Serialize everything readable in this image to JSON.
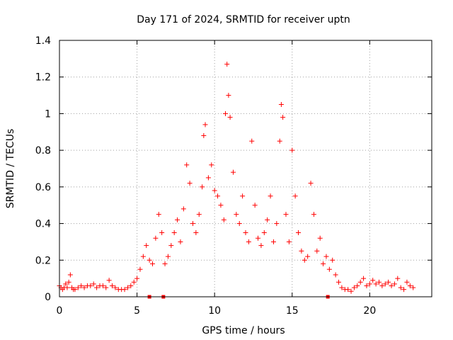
{
  "chart_data": {
    "type": "scatter",
    "title": "Day 171 of 2024, SRMTID for receiver uptn",
    "xlabel": "GPS time / hours",
    "ylabel": "SRMTID / TECUs",
    "xlim": [
      0,
      24
    ],
    "ylim": [
      0,
      1.4
    ],
    "x_ticks": [
      0,
      5,
      10,
      15,
      20
    ],
    "x_tick_labels": [
      "0",
      "5",
      "10",
      "15",
      "20"
    ],
    "y_ticks": [
      0,
      0.2,
      0.4,
      0.6,
      0.8,
      1.0,
      1.2,
      1.4
    ],
    "y_tick_labels": [
      "0",
      "0.2",
      "0.4",
      "0.6",
      "0.8",
      "1",
      "1.2",
      "1.4"
    ],
    "grid": true,
    "marker": "plus",
    "color": "#ff0000",
    "series": [
      {
        "name": "SRMTID",
        "x": [
          0.0,
          0.1,
          0.2,
          0.3,
          0.4,
          0.5,
          0.6,
          0.7,
          0.8,
          0.9,
          1.0,
          1.2,
          1.4,
          1.6,
          1.8,
          2.0,
          2.2,
          2.4,
          2.6,
          2.8,
          3.0,
          3.2,
          3.4,
          3.6,
          3.8,
          4.0,
          4.2,
          4.4,
          4.6,
          4.8,
          5.0,
          5.2,
          5.4,
          5.6,
          5.8,
          6.0,
          6.2,
          6.4,
          6.6,
          6.8,
          7.0,
          7.2,
          7.4,
          7.6,
          7.8,
          8.0,
          8.2,
          8.4,
          8.6,
          8.8,
          9.0,
          9.2,
          9.3,
          9.4,
          9.6,
          9.8,
          10.0,
          10.2,
          10.4,
          10.6,
          10.7,
          10.8,
          10.9,
          11.0,
          11.2,
          11.4,
          11.6,
          11.8,
          12.0,
          12.2,
          12.4,
          12.6,
          12.8,
          13.0,
          13.2,
          13.4,
          13.6,
          13.8,
          14.0,
          14.2,
          14.3,
          14.4,
          14.6,
          14.8,
          15.0,
          15.2,
          15.4,
          15.6,
          15.8,
          16.0,
          16.2,
          16.4,
          16.6,
          16.8,
          17.0,
          17.2,
          17.4,
          17.6,
          17.8,
          18.0,
          18.2,
          18.4,
          18.6,
          18.8,
          19.0,
          19.2,
          19.4,
          19.6,
          19.8,
          20.0,
          20.2,
          20.4,
          20.6,
          20.8,
          21.0,
          21.2,
          21.4,
          21.6,
          21.8,
          22.0,
          22.2,
          22.4,
          22.6,
          22.8
        ],
        "y": [
          0.06,
          0.05,
          0.04,
          0.05,
          0.07,
          0.05,
          0.08,
          0.12,
          0.05,
          0.04,
          0.04,
          0.05,
          0.06,
          0.05,
          0.06,
          0.06,
          0.07,
          0.05,
          0.06,
          0.06,
          0.05,
          0.09,
          0.06,
          0.05,
          0.04,
          0.04,
          0.04,
          0.05,
          0.06,
          0.08,
          0.1,
          0.15,
          0.22,
          0.28,
          0.2,
          0.18,
          0.32,
          0.45,
          0.35,
          0.18,
          0.22,
          0.28,
          0.35,
          0.42,
          0.3,
          0.48,
          0.72,
          0.62,
          0.4,
          0.35,
          0.45,
          0.6,
          0.88,
          0.94,
          0.65,
          0.72,
          0.58,
          0.55,
          0.5,
          0.42,
          1.0,
          1.27,
          1.1,
          0.98,
          0.68,
          0.45,
          0.4,
          0.55,
          0.35,
          0.3,
          0.85,
          0.5,
          0.32,
          0.28,
          0.35,
          0.42,
          0.55,
          0.3,
          0.4,
          0.85,
          1.05,
          0.98,
          0.45,
          0.3,
          0.8,
          0.55,
          0.35,
          0.25,
          0.2,
          0.22,
          0.62,
          0.45,
          0.25,
          0.32,
          0.18,
          0.22,
          0.15,
          0.2,
          0.12,
          0.08,
          0.05,
          0.04,
          0.04,
          0.03,
          0.05,
          0.06,
          0.08,
          0.1,
          0.06,
          0.07,
          0.09,
          0.07,
          0.08,
          0.06,
          0.07,
          0.08,
          0.06,
          0.07,
          0.1,
          0.05,
          0.04,
          0.08,
          0.06,
          0.05
        ]
      }
    ],
    "bottom_flags_x": [
      5.8,
      6.7,
      17.3
    ]
  }
}
